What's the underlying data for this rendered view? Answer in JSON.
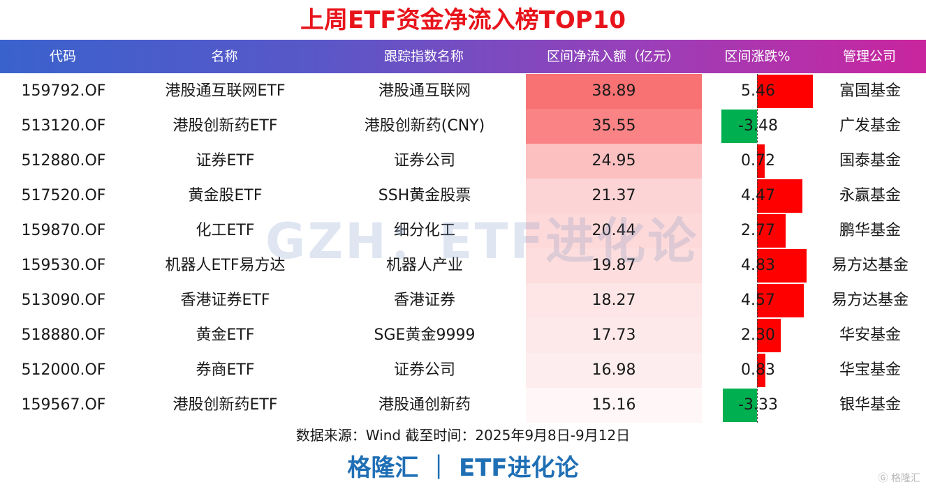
{
  "title": "上周ETF资金净流入榜TOP10",
  "headers": {
    "code": "代码",
    "name": "名称",
    "index": "跟踪指数名称",
    "flow": "区间净流入额（亿元）",
    "change": "区间涨跌%",
    "manager": "管理公司"
  },
  "chart_data": {
    "type": "table",
    "title": "上周ETF资金净流入榜TOP10",
    "columns": [
      "代码",
      "名称",
      "跟踪指数名称",
      "区间净流入额（亿元）",
      "区间涨跌%",
      "管理公司"
    ],
    "rows": [
      {
        "code": "159792.OF",
        "name": "港股通互联网ETF",
        "index": "港股通互联网",
        "flow": "38.89",
        "change": "5.46",
        "manager": "富国基金"
      },
      {
        "code": "513120.OF",
        "name": "港股创新药ETF",
        "index": "港股创新药(CNY)",
        "flow": "35.55",
        "change": "-3.48",
        "manager": "广发基金"
      },
      {
        "code": "512880.OF",
        "name": "证券ETF",
        "index": "证券公司",
        "flow": "24.95",
        "change": "0.72",
        "manager": "国泰基金"
      },
      {
        "code": "517520.OF",
        "name": "黄金股ETF",
        "index": "SSH黄金股票",
        "flow": "21.37",
        "change": "4.47",
        "manager": "永赢基金"
      },
      {
        "code": "159870.OF",
        "name": "化工ETF",
        "index": "细分化工",
        "flow": "20.44",
        "change": "2.77",
        "manager": "鹏华基金"
      },
      {
        "code": "159530.OF",
        "name": "机器人ETF易方达",
        "index": "机器人产业",
        "flow": "19.87",
        "change": "4.83",
        "manager": "易方达基金"
      },
      {
        "code": "513090.OF",
        "name": "香港证券ETF",
        "index": "香港证券",
        "flow": "18.27",
        "change": "4.57",
        "manager": "易方达基金"
      },
      {
        "code": "518880.OF",
        "name": "黄金ETF",
        "index": "SGE黄金9999",
        "flow": "17.73",
        "change": "2.30",
        "manager": "华安基金"
      },
      {
        "code": "512000.OF",
        "name": "券商ETF",
        "index": "证券公司",
        "flow": "16.98",
        "change": "0.83",
        "manager": "华宝基金"
      },
      {
        "code": "159567.OF",
        "name": "港股创新药ETF",
        "index": "港股通创新药",
        "flow": "15.16",
        "change": "-3.33",
        "manager": "银华基金"
      }
    ],
    "positive_color": "#ff0000",
    "negative_color": "#00b050",
    "flow_heat_color": "#f8696b"
  },
  "footer": "数据来源：Wind 截至时间：2025年9月8日-9月12日",
  "brand": "格隆汇 ｜ ETF进化论",
  "watermark": "GZH：ETF进化论",
  "corner_mark": "Ⓖ 格隆汇"
}
